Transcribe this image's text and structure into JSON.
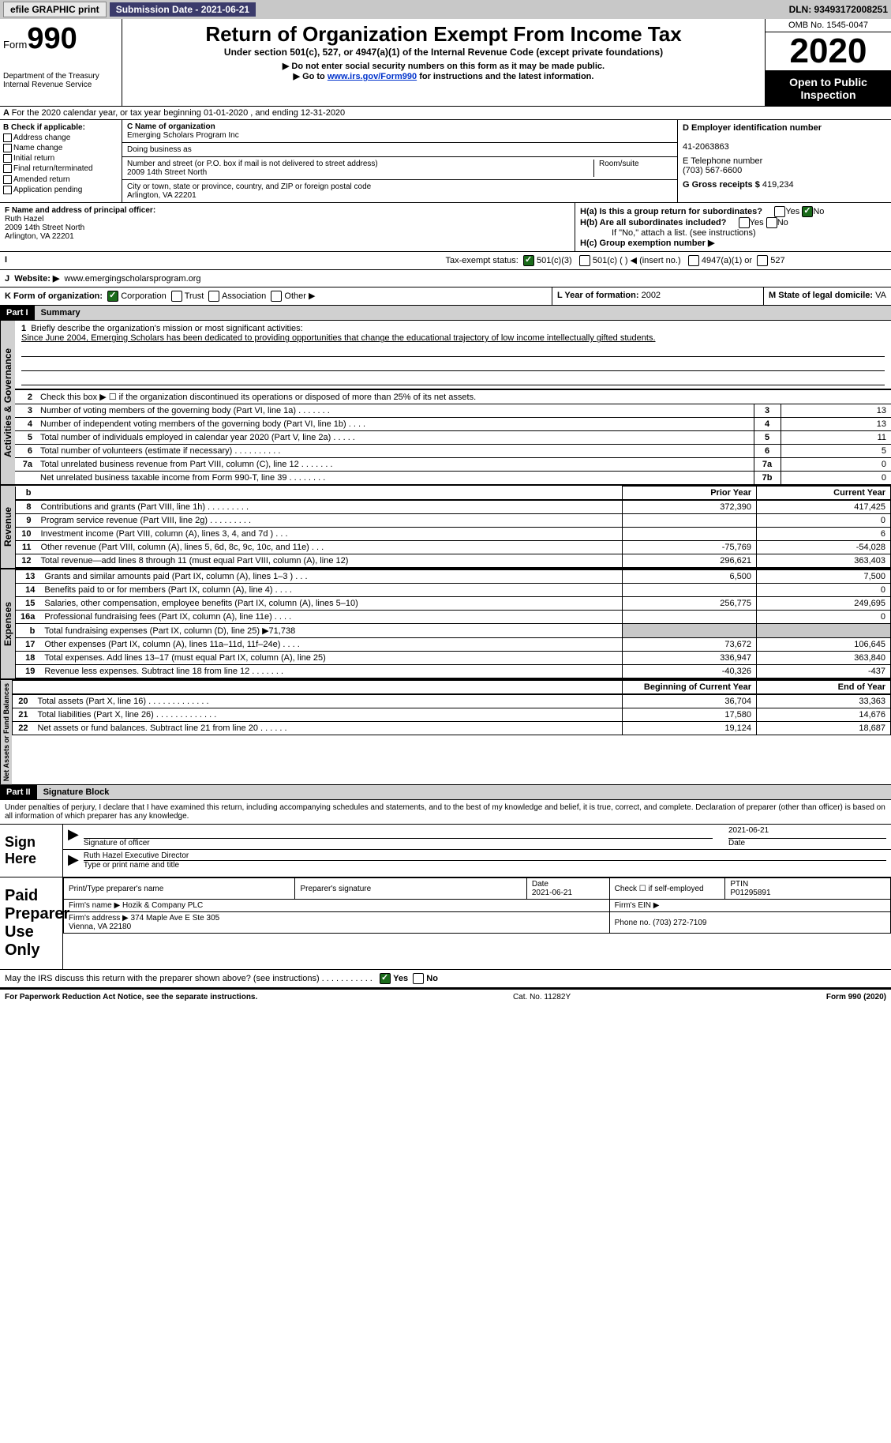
{
  "topbar": {
    "efile": "efile GRAPHIC print",
    "submission": "Submission Date - 2021-06-21",
    "dln": "DLN: 93493172008251"
  },
  "header": {
    "form_prefix": "Form",
    "form_number": "990",
    "dept": "Department of the Treasury\nInternal Revenue Service",
    "title": "Return of Organization Exempt From Income Tax",
    "subtitle": "Under section 501(c), 527, or 4947(a)(1) of the Internal Revenue Code (except private foundations)",
    "note1": "▶ Do not enter social security numbers on this form as it may be made public.",
    "note2_pre": "▶ Go to ",
    "note2_link": "www.irs.gov/Form990",
    "note2_post": " for instructions and the latest information.",
    "omb": "OMB No. 1545-0047",
    "year": "2020",
    "inspection": "Open to Public Inspection"
  },
  "period": "For the 2020 calendar year, or tax year beginning 01-01-2020   , and ending 12-31-2020",
  "section_b": {
    "label": "B Check if applicable:",
    "items": [
      "Address change",
      "Name change",
      "Initial return",
      "Final return/terminated",
      "Amended return",
      "Application pending"
    ]
  },
  "section_c": {
    "name_label": "C Name of organization",
    "name": "Emerging Scholars Program Inc",
    "dba_label": "Doing business as",
    "dba": "",
    "addr_label": "Number and street (or P.O. box if mail is not delivered to street address)",
    "room_label": "Room/suite",
    "addr": "2009 14th Street North",
    "city_label": "City or town, state or province, country, and ZIP or foreign postal code",
    "city": "Arlington, VA  22201"
  },
  "section_d": {
    "ein_label": "D Employer identification number",
    "ein": "41-2063863",
    "phone_label": "E Telephone number",
    "phone": "(703) 567-6600",
    "gross_label": "G Gross receipts $",
    "gross": "419,234"
  },
  "section_f": {
    "label": "F  Name and address of principal officer:",
    "name": "Ruth Hazel",
    "addr1": "2009 14th Street North",
    "addr2": "Arlington, VA  22201"
  },
  "section_h": {
    "ha_label": "H(a)  Is this a group return for subordinates?",
    "hb_label": "H(b)  Are all subordinates included?",
    "hb_note": "If \"No,\" attach a list. (see instructions)",
    "hc_label": "H(c)  Group exemption number ▶",
    "yes": "Yes",
    "no": "No"
  },
  "status": {
    "label": "Tax-exempt status:",
    "opt1": "501(c)(3)",
    "opt2": "501(c) (  ) ◀ (insert no.)",
    "opt3": "4947(a)(1) or",
    "opt4": "527"
  },
  "website": {
    "label": "Website: ▶",
    "value": "www.emergingscholarsprogram.org"
  },
  "korg": {
    "label": "K Form of organization:",
    "opts": [
      "Corporation",
      "Trust",
      "Association",
      "Other ▶"
    ],
    "year_label": "L Year of formation:",
    "year": "2002",
    "state_label": "M State of legal domicile:",
    "state": "VA"
  },
  "part1": {
    "header": "Part I",
    "title": "Summary",
    "tab_gov": "Activities & Governance",
    "tab_rev": "Revenue",
    "tab_exp": "Expenses",
    "tab_net": "Net Assets or Fund Balances",
    "q1_label": "Briefly describe the organization's mission or most significant activities:",
    "q1_text": "Since June 2004, Emerging Scholars has been dedicated to providing opportunities that change the educational trajectory of low income intellectually gifted students.",
    "q2": "Check this box ▶ ☐ if the organization discontinued its operations or disposed of more than 25% of its net assets.",
    "rows_gov": [
      {
        "n": "3",
        "d": "Number of voting members of the governing body (Part VI, line 1a)   .    .    .    .    .    .    .",
        "b": "3",
        "v": "13"
      },
      {
        "n": "4",
        "d": "Number of independent voting members of the governing body (Part VI, line 1b)   .    .    .    .",
        "b": "4",
        "v": "13"
      },
      {
        "n": "5",
        "d": "Total number of individuals employed in calendar year 2020 (Part V, line 2a)   .    .    .    .    .",
        "b": "5",
        "v": "11"
      },
      {
        "n": "6",
        "d": "Total number of volunteers (estimate if necessary)   .    .    .    .    .    .    .    .    .    .",
        "b": "6",
        "v": "5"
      },
      {
        "n": "7a",
        "d": "Total unrelated business revenue from Part VIII, column (C), line 12   .    .    .    .    .    .    .",
        "b": "7a",
        "v": "0"
      },
      {
        "n": "",
        "d": "Net unrelated business taxable income from Form 990-T, line 39   .    .    .    .    .    .    .    .",
        "b": "7b",
        "v": "0"
      }
    ],
    "prior_label": "Prior Year",
    "current_label": "Current Year",
    "begin_label": "Beginning of Current Year",
    "end_label": "End of Year",
    "rows_rev": [
      {
        "n": "8",
        "d": "Contributions and grants (Part VIII, line 1h)   .    .    .    .    .    .    .    .    .",
        "p": "372,390",
        "c": "417,425"
      },
      {
        "n": "9",
        "d": "Program service revenue (Part VIII, line 2g)   .    .    .    .    .    .    .    .    .",
        "p": "",
        "c": "0"
      },
      {
        "n": "10",
        "d": "Investment income (Part VIII, column (A), lines 3, 4, and 7d )   .    .    .",
        "p": "",
        "c": "6"
      },
      {
        "n": "11",
        "d": "Other revenue (Part VIII, column (A), lines 5, 6d, 8c, 9c, 10c, and 11e)   .    .    .",
        "p": "-75,769",
        "c": "-54,028"
      },
      {
        "n": "12",
        "d": "Total revenue—add lines 8 through 11 (must equal Part VIII, column (A), line 12)",
        "p": "296,621",
        "c": "363,403"
      }
    ],
    "rows_exp": [
      {
        "n": "13",
        "d": "Grants and similar amounts paid (Part IX, column (A), lines 1–3 )   .    .    .",
        "p": "6,500",
        "c": "7,500"
      },
      {
        "n": "14",
        "d": "Benefits paid to or for members (Part IX, column (A), line 4)   .    .    .    .",
        "p": "",
        "c": "0"
      },
      {
        "n": "15",
        "d": "Salaries, other compensation, employee benefits (Part IX, column (A), lines 5–10)",
        "p": "256,775",
        "c": "249,695"
      },
      {
        "n": "16a",
        "d": "Professional fundraising fees (Part IX, column (A), line 11e)   .    .    .    .",
        "p": "",
        "c": "0"
      },
      {
        "n": "b",
        "d": "Total fundraising expenses (Part IX, column (D), line 25) ▶71,738",
        "p": "shaded",
        "c": "shaded"
      },
      {
        "n": "17",
        "d": "Other expenses (Part IX, column (A), lines 11a–11d, 11f–24e)   .    .    .    .",
        "p": "73,672",
        "c": "106,645"
      },
      {
        "n": "18",
        "d": "Total expenses. Add lines 13–17 (must equal Part IX, column (A), line 25)",
        "p": "336,947",
        "c": "363,840"
      },
      {
        "n": "19",
        "d": "Revenue less expenses. Subtract line 18 from line 12   .    .    .    .    .    .    .",
        "p": "-40,326",
        "c": "-437"
      }
    ],
    "rows_net": [
      {
        "n": "20",
        "d": "Total assets (Part X, line 16)   .    .    .    .    .    .    .    .    .    .    .    .    .",
        "p": "36,704",
        "c": "33,363"
      },
      {
        "n": "21",
        "d": "Total liabilities (Part X, line 26)   .    .    .    .    .    .    .    .    .    .    .    .    .",
        "p": "17,580",
        "c": "14,676"
      },
      {
        "n": "22",
        "d": "Net assets or fund balances. Subtract line 21 from line 20   .    .    .    .    .    .",
        "p": "19,124",
        "c": "18,687"
      }
    ]
  },
  "part2": {
    "header": "Part II",
    "title": "Signature Block",
    "declaration": "Under penalties of perjury, I declare that I have examined this return, including accompanying schedules and statements, and to the best of my knowledge and belief, it is true, correct, and complete. Declaration of preparer (other than officer) is based on all information of which preparer has any knowledge.",
    "sign_here": "Sign Here",
    "sig_officer": "Signature of officer",
    "sig_date": "2021-06-21",
    "date_label": "Date",
    "officer_name": "Ruth Hazel  Executive Director",
    "type_name": "Type or print name and title",
    "paid_label": "Paid Preparer Use Only",
    "prep_name_label": "Print/Type preparer's name",
    "prep_sig_label": "Preparer's signature",
    "prep_date": "2021-06-21",
    "prep_check": "Check ☐ if self-employed",
    "ptin_label": "PTIN",
    "ptin": "P01295891",
    "firm_name_label": "Firm's name    ▶",
    "firm_name": "Hozik & Company PLC",
    "firm_ein_label": "Firm's EIN ▶",
    "firm_addr_label": "Firm's address ▶",
    "firm_addr": "374 Maple Ave E Ste 305\nVienna, VA  22180",
    "firm_phone_label": "Phone no.",
    "firm_phone": "(703) 272-7109",
    "discuss": "May the IRS discuss this return with the preparer shown above? (see instructions)   .    .    .    .    .    .    .    .    .    .    ."
  },
  "footer": {
    "left": "For Paperwork Reduction Act Notice, see the separate instructions.",
    "mid": "Cat. No. 11282Y",
    "right": "Form 990 (2020)"
  }
}
